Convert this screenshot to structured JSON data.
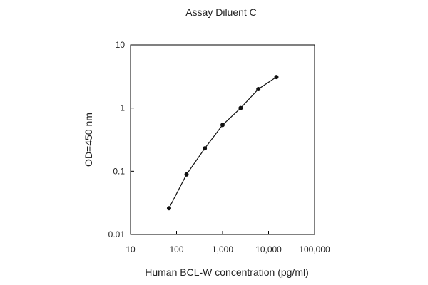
{
  "chart_data": {
    "type": "line",
    "title": "Assay Diluent C",
    "xlabel": "Human BCL-W concentration (pg/ml)",
    "ylabel": "OD=450 nm",
    "x_scale": "log",
    "y_scale": "log",
    "xlim": [
      10,
      100000
    ],
    "ylim": [
      0.01,
      10
    ],
    "x_ticks": [
      10,
      100,
      1000,
      10000,
      100000
    ],
    "x_tick_labels": [
      "10",
      "100",
      "1,000",
      "10,000",
      "100,000"
    ],
    "y_ticks": [
      0.01,
      0.1,
      1,
      10
    ],
    "y_tick_labels": [
      "0.01",
      "0.1",
      "1",
      "10"
    ],
    "grid": false,
    "legend": "none",
    "series": [
      {
        "x": [
          68.6,
          165,
          411,
          1000,
          2470,
          6000,
          14800
        ],
        "y": [
          0.026,
          0.089,
          0.23,
          0.54,
          1.0,
          2.0,
          3.1
        ],
        "color": "#111111",
        "marker": "circle"
      }
    ]
  }
}
